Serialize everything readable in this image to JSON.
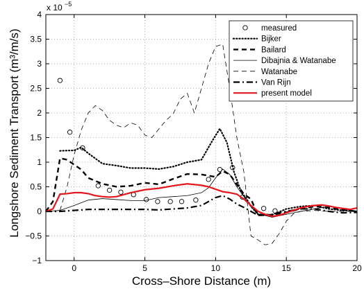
{
  "chart_data": {
    "type": "line",
    "title": "",
    "xlabel": "Cross–Shore Distance (m)",
    "ylabel": "Longshore Sediment Transport (m³/m/s)",
    "y_multiplier": "x 10",
    "y_multiplier_exp": "−5",
    "xlim": [
      -2,
      20
    ],
    "ylim": [
      -1,
      4
    ],
    "x_ticks": [
      0,
      5,
      10,
      15,
      20
    ],
    "y_ticks": [
      -1,
      -0.5,
      0,
      0.5,
      1,
      1.5,
      2,
      2.5,
      3,
      3.5,
      4
    ],
    "grid": true,
    "legend_position": "top-right",
    "series": [
      {
        "name": "measured",
        "style": "markers",
        "color": "#000000",
        "x": [
          -1.0,
          -0.3,
          0.6,
          1.7,
          2.5,
          3.3,
          4.2,
          5.1,
          5.9,
          6.8,
          7.6,
          8.6,
          9.5,
          10.3,
          11.2,
          11.9,
          13.4,
          14.2
        ],
        "y": [
          2.66,
          1.61,
          1.29,
          0.52,
          0.43,
          0.39,
          0.34,
          0.24,
          0.2,
          0.2,
          0.2,
          0.23,
          0.65,
          0.85,
          0.89,
          0.29,
          0.06,
          0.01
        ]
      },
      {
        "name": "Bijker",
        "style": "dotted",
        "color": "#000000",
        "x": [
          -1.0,
          0.0,
          0.5,
          1.0,
          2.0,
          3.0,
          4.0,
          5.0,
          6.0,
          7.0,
          8.0,
          9.0,
          9.8,
          10.3,
          10.8,
          11.3,
          11.8,
          12.2,
          12.5,
          13.0,
          14.0,
          15.0,
          16.0,
          17.0,
          18.0,
          19.0,
          20.0
        ],
        "y": [
          1.23,
          1.24,
          1.3,
          1.18,
          0.97,
          0.93,
          0.88,
          0.88,
          0.86,
          0.91,
          1.0,
          1.05,
          1.45,
          1.68,
          1.4,
          0.8,
          0.4,
          0.25,
          0.1,
          -0.06,
          -0.07,
          0.05,
          0.1,
          0.12,
          0.05,
          0.02,
          0.0
        ]
      },
      {
        "name": "Bailard",
        "style": "dashed-thick",
        "color": "#000000",
        "x": [
          -2.0,
          -1.5,
          -1.0,
          -0.5,
          0.0,
          0.5,
          1.0,
          2.0,
          3.0,
          4.0,
          5.0,
          6.0,
          7.0,
          8.0,
          9.0,
          10.0,
          10.5,
          11.0,
          11.5,
          12.0,
          12.5,
          13.0,
          14.0,
          15.0,
          16.0,
          17.0,
          18.0,
          19.0,
          20.0
        ],
        "y": [
          0.0,
          0.2,
          1.08,
          1.05,
          0.95,
          0.85,
          0.68,
          0.56,
          0.5,
          0.52,
          0.58,
          0.55,
          0.66,
          0.76,
          0.75,
          0.7,
          0.82,
          0.75,
          0.55,
          0.35,
          0.25,
          -0.08,
          -0.07,
          -0.02,
          0.05,
          0.1,
          0.08,
          0.03,
          0.0
        ]
      },
      {
        "name": "Dibajnia & Watanabe",
        "style": "thin",
        "color": "#000000",
        "x": [
          -2.0,
          -1.0,
          0.0,
          1.0,
          2.0,
          3.0,
          4.0,
          5.0,
          6.0,
          7.0,
          8.0,
          9.0,
          9.5,
          10.0,
          10.5,
          11.0,
          11.5,
          12.0,
          12.5,
          13.0,
          14.0,
          15.0,
          16.0,
          17.0,
          18.0,
          19.0,
          20.0
        ],
        "y": [
          0.0,
          0.02,
          0.12,
          0.23,
          0.26,
          0.24,
          0.22,
          0.22,
          0.28,
          0.3,
          0.32,
          0.38,
          0.48,
          0.68,
          0.86,
          0.75,
          0.5,
          0.3,
          0.1,
          -0.05,
          -0.12,
          -0.06,
          0.0,
          0.05,
          0.1,
          0.05,
          0.0
        ]
      },
      {
        "name": "Watanabe",
        "style": "dashed-thin",
        "color": "#000000",
        "x": [
          -1.0,
          -0.5,
          0.0,
          0.5,
          1.0,
          1.5,
          2.0,
          2.5,
          3.0,
          3.5,
          4.0,
          4.5,
          5.0,
          5.5,
          6.0,
          6.5,
          7.0,
          7.5,
          8.0,
          8.5,
          9.0,
          9.5,
          10.0,
          10.5,
          11.0,
          11.5,
          12.0,
          12.5,
          13.0,
          13.5,
          14.0,
          14.5,
          15.0,
          15.5,
          16.0,
          17.0,
          18.0,
          19.0,
          20.0
        ],
        "y": [
          0.02,
          0.5,
          1.15,
          1.65,
          2.0,
          2.15,
          2.05,
          1.85,
          1.75,
          1.7,
          1.8,
          1.75,
          1.55,
          1.5,
          1.68,
          1.85,
          1.98,
          2.28,
          2.4,
          2.0,
          2.5,
          3.0,
          3.35,
          3.4,
          2.5,
          1.5,
          0.8,
          -0.5,
          -0.58,
          -0.68,
          -0.65,
          -0.45,
          -0.2,
          -0.05,
          0.0,
          0.02,
          0.0,
          0.0,
          0.0
        ]
      },
      {
        "name": "Van Rijn",
        "style": "dashdot",
        "color": "#000000",
        "x": [
          -2.0,
          -1.0,
          0.0,
          1.0,
          2.0,
          3.0,
          4.0,
          5.0,
          6.0,
          7.0,
          8.0,
          9.0,
          9.5,
          10.0,
          10.5,
          11.0,
          11.5,
          12.0,
          12.5,
          13.0,
          14.0,
          15.0,
          16.0,
          17.0,
          18.0,
          19.0,
          20.0
        ],
        "y": [
          0.0,
          0.0,
          0.02,
          0.04,
          0.04,
          0.04,
          0.04,
          0.04,
          0.03,
          0.05,
          0.07,
          0.12,
          0.2,
          0.28,
          0.32,
          0.25,
          0.15,
          0.08,
          0.0,
          -0.08,
          -0.06,
          0.0,
          0.05,
          0.05,
          0.0,
          -0.03,
          -0.02
        ]
      },
      {
        "name": "present model",
        "style": "solid-thick",
        "color": "#e8141c",
        "x": [
          -2.0,
          -1.5,
          -1.0,
          -0.5,
          0.0,
          0.5,
          1.0,
          1.5,
          2.0,
          2.5,
          3.0,
          3.5,
          4.0,
          5.0,
          6.0,
          7.0,
          8.0,
          9.0,
          9.5,
          10.0,
          10.5,
          11.0,
          11.5,
          12.0,
          12.5,
          13.0,
          13.5,
          14.0,
          14.5,
          15.0,
          15.5,
          16.0,
          16.5,
          17.0,
          17.5,
          18.0,
          18.5,
          19.0,
          19.5,
          20.0
        ],
        "y": [
          0.0,
          0.05,
          0.35,
          0.36,
          0.38,
          0.38,
          0.36,
          0.32,
          0.3,
          0.29,
          0.3,
          0.34,
          0.38,
          0.44,
          0.47,
          0.52,
          0.56,
          0.53,
          0.5,
          0.45,
          0.4,
          0.38,
          0.35,
          0.25,
          0.12,
          0.0,
          -0.06,
          -0.1,
          -0.08,
          -0.03,
          0.02,
          0.07,
          0.1,
          0.12,
          0.13,
          0.11,
          0.08,
          0.06,
          0.04,
          0.07
        ]
      }
    ]
  }
}
